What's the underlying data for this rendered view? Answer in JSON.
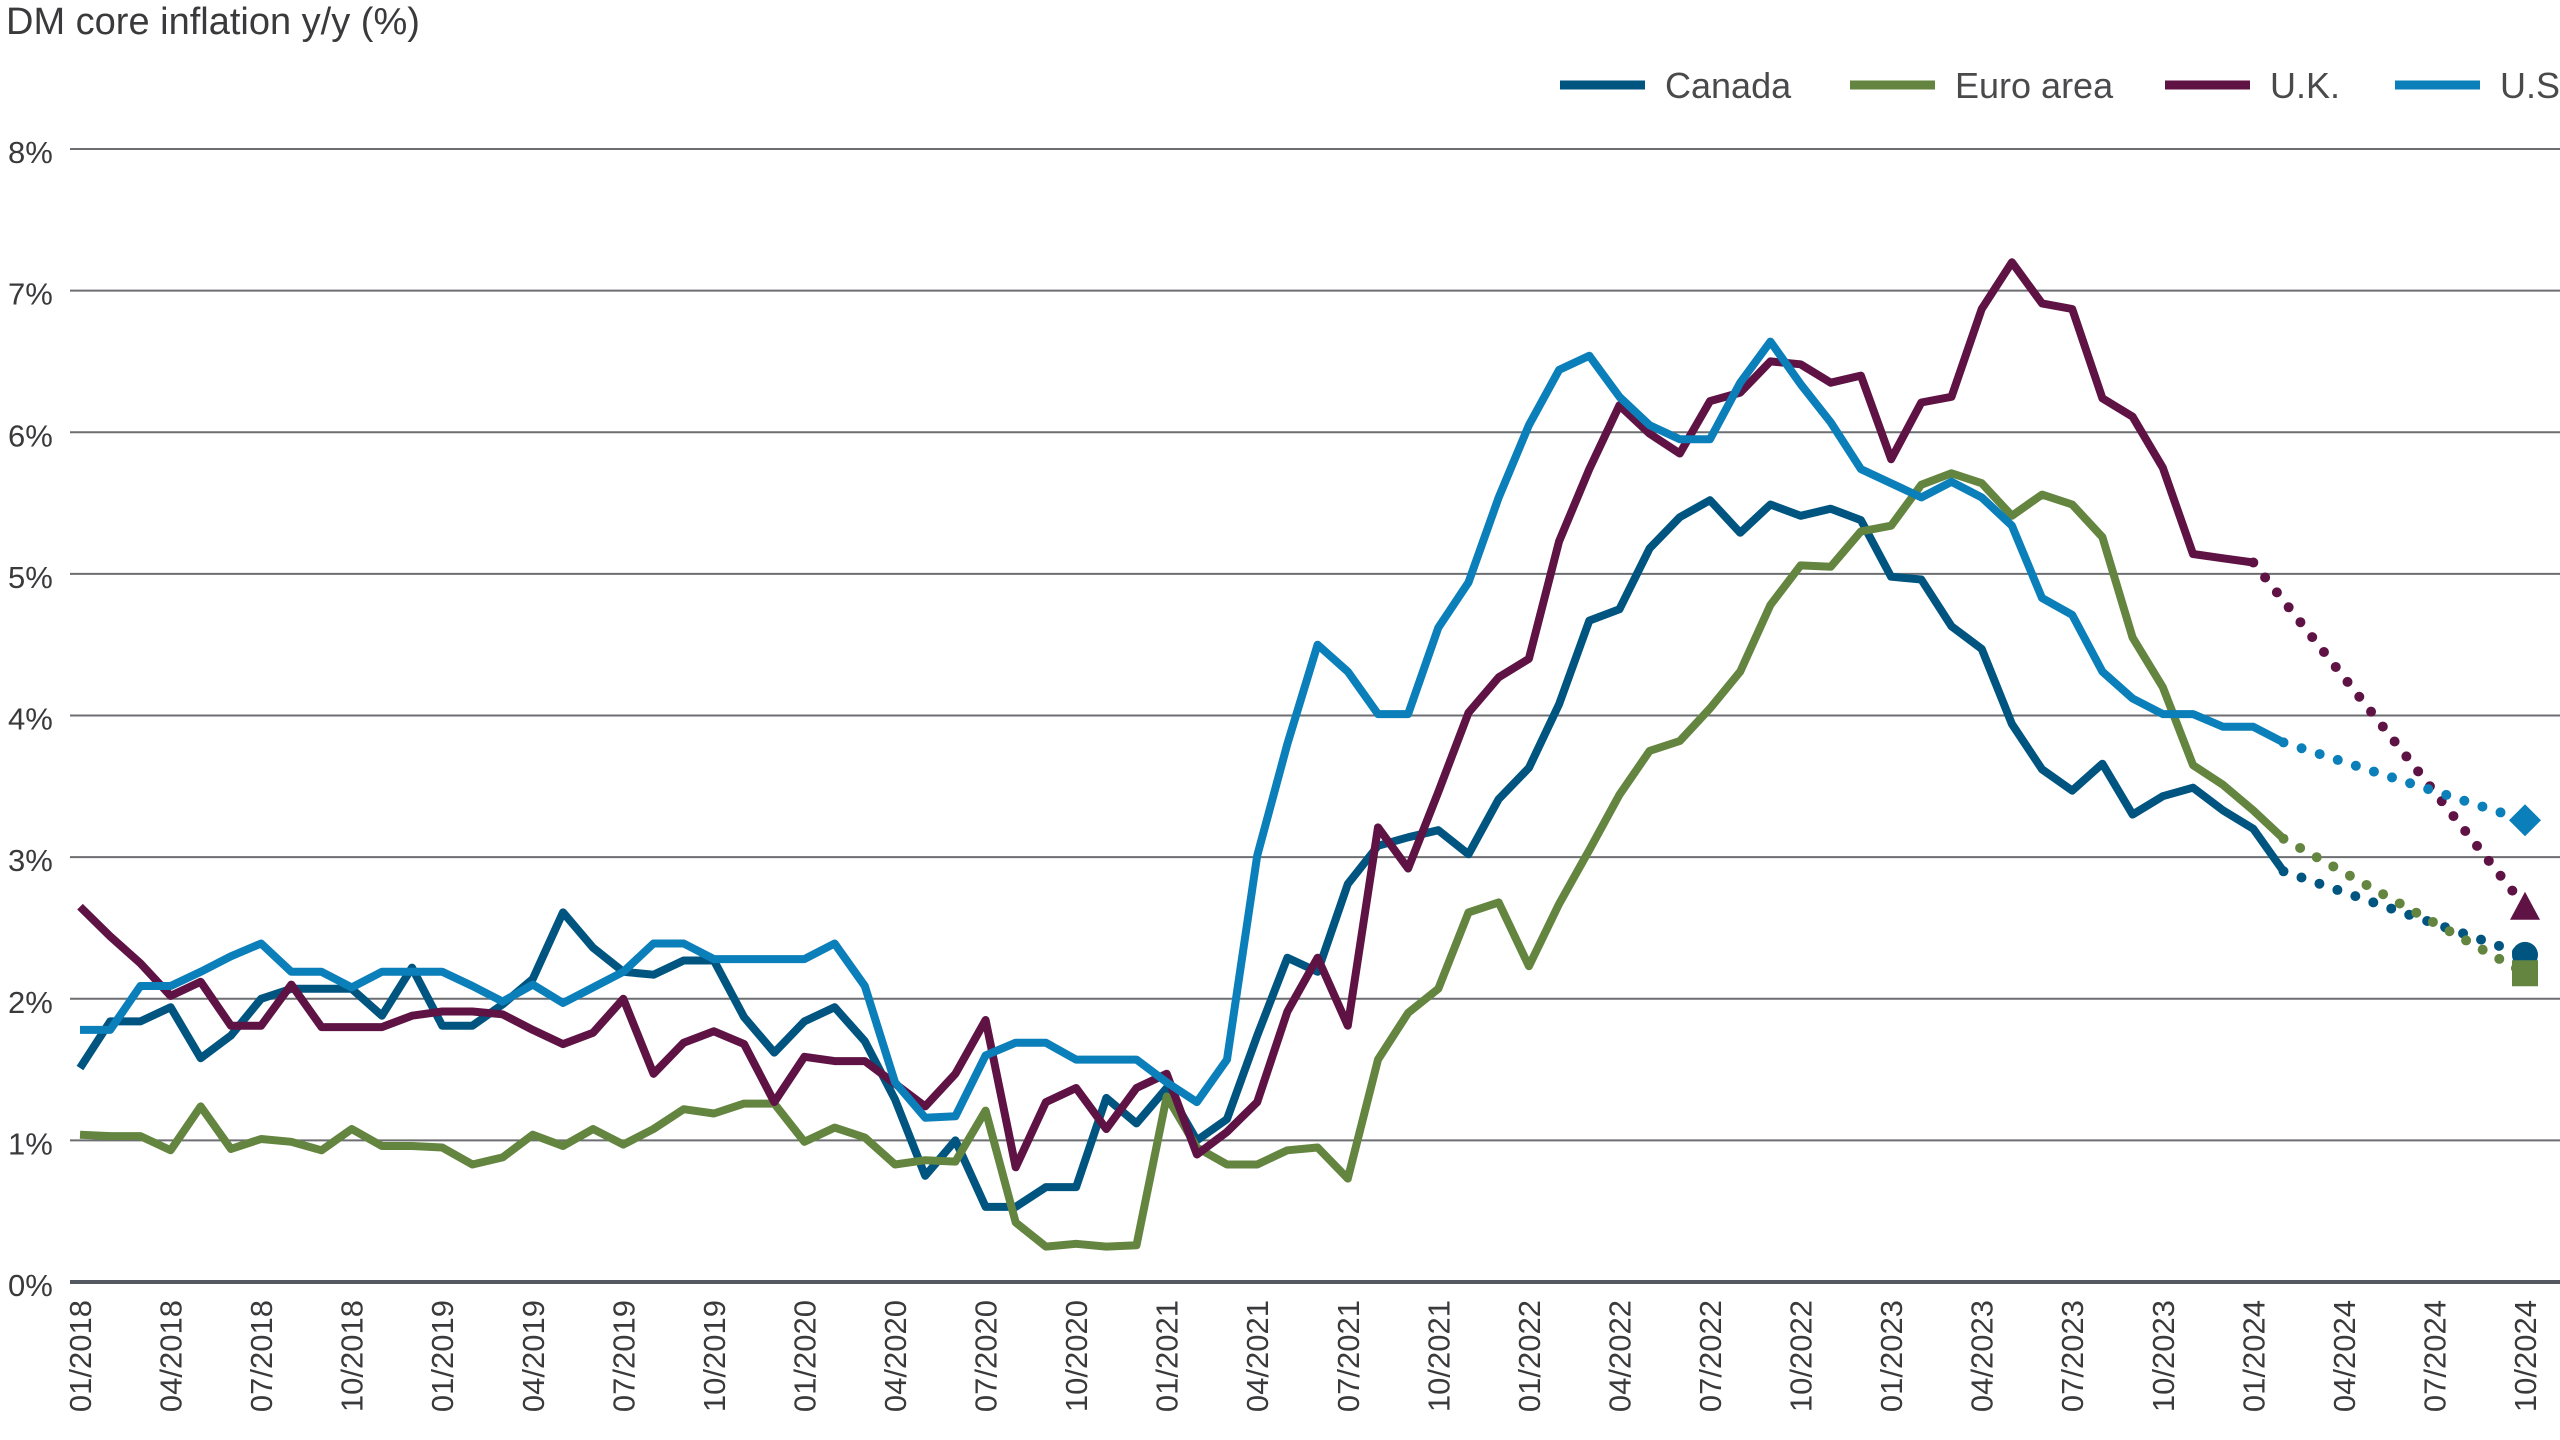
{
  "chart_data": {
    "type": "line",
    "title": "DM core inflation y/y (%)",
    "xlabel": "",
    "ylabel": "",
    "x_start": "01/2018",
    "x_frequency": "monthly",
    "x_tick_labels": [
      "01/2018",
      "04/2018",
      "07/2018",
      "10/2018",
      "01/2019",
      "04/2019",
      "07/2019",
      "10/2019",
      "01/2020",
      "04/2020",
      "07/2020",
      "10/2020",
      "01/2021",
      "04/2021",
      "07/2021",
      "10/2021",
      "01/2022",
      "04/2022",
      "07/2022",
      "10/2022",
      "01/2023",
      "04/2023",
      "07/2023",
      "10/2023",
      "01/2024",
      "04/2024",
      "07/2024",
      "10/2024"
    ],
    "ylim": [
      0,
      8
    ],
    "y_ticks": [
      0,
      1,
      2,
      3,
      4,
      5,
      6,
      7,
      8
    ],
    "y_tick_labels": [
      "0%",
      "1%",
      "2%",
      "3%",
      "4%",
      "5%",
      "6%",
      "7%",
      "8%"
    ],
    "grid": "horizontal",
    "legend_position": "top-right",
    "series": [
      {
        "name": "Canada",
        "color": "#005580",
        "forecast_marker": "circle",
        "values": [
          1.51,
          1.84,
          1.84,
          1.94,
          1.58,
          1.74,
          2.0,
          2.07,
          2.07,
          2.07,
          1.88,
          2.22,
          1.81,
          1.81,
          1.96,
          2.14,
          2.61,
          2.36,
          2.19,
          2.17,
          2.27,
          2.27,
          1.87,
          1.62,
          1.84,
          1.94,
          1.7,
          1.29,
          0.75,
          1.0,
          0.53,
          0.53,
          0.67,
          0.67,
          1.3,
          1.12,
          1.37,
          1.0,
          1.15,
          1.74,
          2.29,
          2.19,
          2.81,
          3.08,
          3.14,
          3.19,
          3.02,
          3.41,
          3.63,
          4.08,
          4.67,
          4.75,
          5.18,
          5.4,
          5.52,
          5.29,
          5.49,
          5.41,
          5.46,
          5.38,
          4.98,
          4.96,
          4.63,
          4.47,
          3.94,
          3.62,
          3.47,
          3.66,
          3.3,
          3.43,
          3.49,
          3.33,
          3.2,
          2.9
        ],
        "forecast": {
          "date": "10/2024",
          "value": 2.31
        }
      },
      {
        "name": "Euro area",
        "color": "#648540",
        "forecast_marker": "square",
        "values": [
          1.04,
          1.03,
          1.03,
          0.93,
          1.24,
          0.94,
          1.01,
          0.99,
          0.93,
          1.08,
          0.96,
          0.96,
          0.95,
          0.83,
          0.88,
          1.04,
          0.96,
          1.08,
          0.97,
          1.08,
          1.22,
          1.19,
          1.26,
          1.26,
          0.99,
          1.09,
          1.02,
          0.83,
          0.86,
          0.85,
          1.21,
          0.42,
          0.25,
          0.27,
          0.25,
          0.26,
          1.31,
          0.95,
          0.83,
          0.83,
          0.93,
          0.95,
          0.73,
          1.57,
          1.9,
          2.07,
          2.61,
          2.68,
          2.23,
          2.67,
          3.05,
          3.44,
          3.75,
          3.82,
          4.05,
          4.31,
          4.78,
          5.06,
          5.05,
          5.3,
          5.34,
          5.63,
          5.71,
          5.64,
          5.41,
          5.56,
          5.49,
          5.26,
          4.55,
          4.2,
          3.65,
          3.51,
          3.33,
          3.13
        ],
        "forecast": {
          "date": "10/2024",
          "value": 2.18
        }
      },
      {
        "name": "U.K.",
        "color": "#5f1345",
        "forecast_marker": "triangle",
        "values": [
          2.65,
          2.44,
          2.25,
          2.02,
          2.12,
          1.81,
          1.81,
          2.1,
          1.8,
          1.8,
          1.8,
          1.88,
          1.91,
          1.91,
          1.89,
          1.78,
          1.68,
          1.76,
          2.0,
          1.47,
          1.69,
          1.77,
          1.68,
          1.27,
          1.59,
          1.56,
          1.56,
          1.4,
          1.24,
          1.47,
          1.85,
          0.81,
          1.27,
          1.37,
          1.08,
          1.37,
          1.47,
          0.9,
          1.06,
          1.27,
          1.91,
          2.29,
          1.81,
          3.21,
          2.92,
          3.46,
          4.02,
          4.27,
          4.4,
          5.23,
          5.74,
          6.19,
          5.99,
          5.85,
          6.22,
          6.28,
          6.5,
          6.48,
          6.35,
          6.4,
          5.81,
          6.21,
          6.25,
          6.87,
          7.2,
          6.91,
          6.87,
          6.24,
          6.11,
          5.75,
          5.14,
          5.11,
          5.08
        ],
        "forecast": {
          "date": "10/2024",
          "value": 2.65
        }
      },
      {
        "name": "U.S.",
        "color": "#0a7fba",
        "forecast_marker": "diamond",
        "values": [
          1.78,
          1.78,
          2.09,
          2.09,
          2.19,
          2.3,
          2.39,
          2.19,
          2.19,
          2.08,
          2.19,
          2.19,
          2.19,
          2.09,
          1.98,
          2.1,
          1.97,
          2.08,
          2.19,
          2.39,
          2.39,
          2.28,
          2.28,
          2.28,
          2.28,
          2.39,
          2.09,
          1.41,
          1.16,
          1.17,
          1.6,
          1.69,
          1.69,
          1.57,
          1.57,
          1.57,
          1.41,
          1.27,
          1.57,
          3.01,
          3.8,
          4.5,
          4.31,
          4.01,
          4.01,
          4.62,
          4.94,
          5.54,
          6.05,
          6.44,
          6.54,
          6.25,
          6.05,
          5.95,
          5.95,
          6.35,
          6.64,
          6.34,
          6.07,
          5.74,
          5.64,
          5.54,
          5.65,
          5.54,
          5.34,
          4.83,
          4.71,
          4.31,
          4.12,
          4.01,
          4.01,
          3.92,
          3.92,
          3.81
        ],
        "forecast": {
          "date": "10/2024",
          "value": 3.26
        }
      }
    ]
  }
}
